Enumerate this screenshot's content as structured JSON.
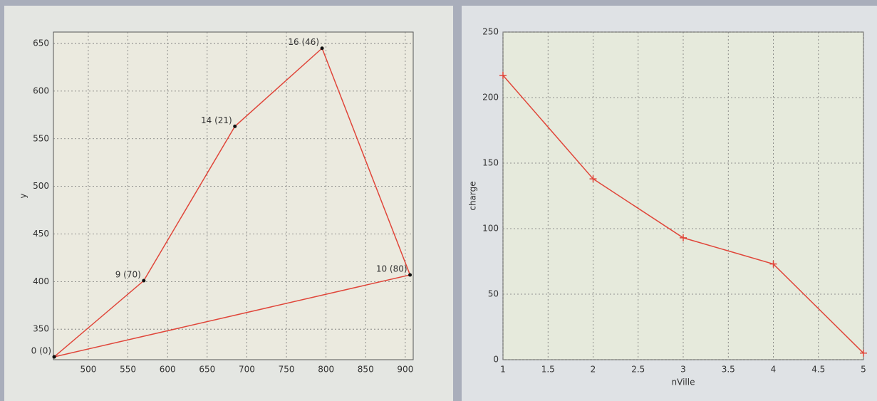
{
  "chart_data": [
    {
      "type": "line",
      "ylabel": "y",
      "x": [
        457,
        570,
        685,
        795,
        906,
        457
      ],
      "values": [
        321,
        401,
        563,
        645,
        407,
        321
      ],
      "point_labels": [
        "0 (0)",
        "9 (70)",
        "14 (21)",
        "16 (46)",
        "10 (80)",
        null
      ],
      "color": "#e0463a",
      "marker": "dot",
      "marker_color": "#111111",
      "xlim": [
        456,
        910
      ],
      "ylim": [
        318,
        662
      ],
      "xticks": [
        500,
        550,
        600,
        650,
        700,
        750,
        800,
        850,
        900
      ],
      "yticks": [
        350,
        400,
        450,
        500,
        550,
        600,
        650
      ],
      "grid": true
    },
    {
      "type": "line",
      "xlabel": "nVille",
      "ylabel": "charge",
      "x": [
        1,
        2,
        3,
        4,
        5
      ],
      "values": [
        217,
        138,
        93,
        73,
        5
      ],
      "color": "#e0463a",
      "marker": "plus",
      "marker_color": "#e0463a",
      "xlim": [
        1,
        5
      ],
      "ylim": [
        0,
        250
      ],
      "xticks": [
        1,
        1.5,
        2,
        2.5,
        3,
        3.5,
        4,
        4.5,
        5
      ],
      "yticks": [
        0,
        50,
        100,
        150,
        200,
        250
      ],
      "grid": true
    }
  ]
}
